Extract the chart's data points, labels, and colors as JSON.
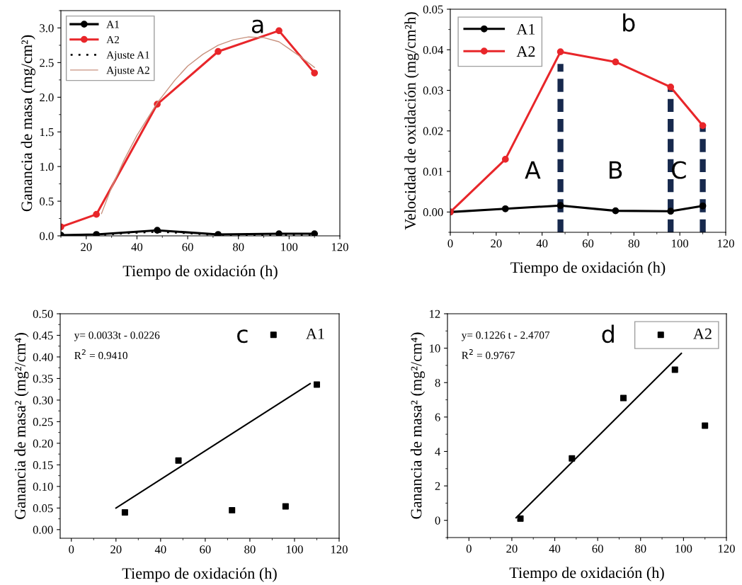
{
  "chart_data": [
    {
      "type": "line",
      "xlabel": "Tiempo de oxidación (h)",
      "ylabel": "Ganancia de masa (mg/cm²)",
      "xlim": [
        10,
        120
      ],
      "xticks": [
        20,
        40,
        60,
        80,
        100,
        120
      ],
      "ylim": [
        0,
        3.25
      ],
      "yticks": [
        {
          "value": 0,
          "label": "0.0"
        },
        0.5,
        {
          "value": 1,
          "label": "1.0"
        },
        1.5,
        {
          "value": 2,
          "label": "2.0"
        },
        2.5,
        {
          "value": 3,
          "label": "3.0"
        }
      ],
      "legend": "top left",
      "grid": false,
      "annotations": [
        "a"
      ],
      "series": [
        {
          "name": "A1",
          "color": "#000000",
          "marker": "circle",
          "line_style": "solid",
          "x": [
            10,
            24,
            48,
            72,
            96,
            110
          ],
          "values": [
            0.01,
            0.02,
            0.08,
            0.02,
            0.03,
            0.03
          ]
        },
        {
          "name": "A2",
          "color": "#e8262a",
          "marker": "circle",
          "line_style": "solid",
          "x": [
            10,
            24,
            48,
            72,
            96,
            110
          ],
          "values": [
            0.13,
            0.31,
            1.9,
            2.66,
            2.96,
            2.35
          ]
        },
        {
          "name": "Ajuste A1",
          "color": "#000000",
          "marker": "none",
          "line_style": "dotted",
          "x": [
            24,
            36,
            48,
            60,
            72,
            84,
            96,
            110
          ],
          "values": [
            0.01,
            0.04,
            0.06,
            0.04,
            0.01,
            0.01,
            0.01,
            0.01
          ]
        },
        {
          "name": "Ajuste A2",
          "color": "#c8927f",
          "marker": "none",
          "line_style": "solid",
          "x": [
            26,
            30,
            35,
            40,
            48,
            55,
            60,
            66,
            72,
            78,
            84,
            90,
            96,
            100,
            105,
            110
          ],
          "values": [
            0.32,
            0.7,
            1.1,
            1.45,
            1.92,
            2.25,
            2.45,
            2.62,
            2.75,
            2.83,
            2.87,
            2.86,
            2.8,
            2.7,
            2.57,
            2.43
          ]
        }
      ]
    },
    {
      "type": "line",
      "xlabel": "Tiempo de oxidación (h)",
      "ylabel": "Velocidad de oxidación (mg/cm²h)",
      "xlim": [
        0,
        120
      ],
      "xticks": [
        0,
        20,
        40,
        60,
        80,
        100,
        120
      ],
      "ylim": [
        -0.005,
        0.05
      ],
      "yticks": [
        {
          "value": 0,
          "label": "0.00"
        },
        {
          "value": 0.01,
          "label": "0.01"
        },
        {
          "value": 0.02,
          "label": "0.02"
        },
        {
          "value": 0.03,
          "label": "0.03"
        },
        {
          "value": 0.04,
          "label": "0.04"
        },
        {
          "value": 0.05,
          "label": "0.05"
        }
      ],
      "legend": "top left",
      "grid": false,
      "annotations": [
        "b",
        "A",
        "B",
        "C"
      ],
      "series": [
        {
          "name": "A1",
          "color": "#000000",
          "marker": "circle",
          "line_style": "solid",
          "x": [
            0,
            24,
            48,
            72,
            96,
            110
          ],
          "values": [
            0,
            0.0008,
            0.0016,
            0.0003,
            0.0002,
            0.0015
          ]
        },
        {
          "name": "A2",
          "color": "#e8262a",
          "marker": "circle",
          "line_style": "solid",
          "x": [
            0,
            24,
            48,
            72,
            96,
            110
          ],
          "values": [
            0,
            0.013,
            0.0395,
            0.037,
            0.0308,
            0.0213
          ]
        },
        {
          "color": "#17294d",
          "marker": "none",
          "line_style": "dashed",
          "x": [
            48,
            48
          ],
          "values": [
            -0.005,
            0.0365
          ]
        },
        {
          "color": "#17294d",
          "marker": "none",
          "line_style": "dashed",
          "x": [
            96,
            96
          ],
          "values": [
            -0.005,
            0.0303
          ]
        },
        {
          "color": "#17294d",
          "marker": "none",
          "line_style": "dashed",
          "x": [
            110,
            110
          ],
          "values": [
            -0.005,
            0.021
          ]
        }
      ]
    },
    {
      "type": "scatter",
      "xlabel": "Tiempo de oxidación (h)",
      "ylabel": "Ganancia de masa² (mg²/cm⁴)",
      "xlim": [
        -5,
        120
      ],
      "xticks": [
        0,
        20,
        40,
        60,
        80,
        100,
        120
      ],
      "ylim": [
        -0.02,
        0.5
      ],
      "yticks": [
        {
          "value": 0,
          "label": "0.00"
        },
        {
          "value": 0.05,
          "label": "0.05"
        },
        {
          "value": 0.1,
          "label": "0.10"
        },
        {
          "value": 0.15,
          "label": "0.15"
        },
        {
          "value": 0.2,
          "label": "0.20"
        },
        {
          "value": 0.25,
          "label": "0.25"
        },
        {
          "value": 0.3,
          "label": "0.30"
        },
        {
          "value": 0.35,
          "label": "0.35"
        },
        {
          "value": 0.4,
          "label": "0.40"
        },
        {
          "value": 0.45,
          "label": "0.45"
        },
        {
          "value": 0.5,
          "label": "0.50"
        }
      ],
      "legend": "top right",
      "grid": false,
      "annotations": [
        "c",
        "y= 0.0033t - 0.0226",
        "R$^{2}$ = 0.9410"
      ],
      "series": [
        {
          "name": "A1",
          "color": "#000000",
          "marker": "square",
          "x": [
            24,
            48,
            72,
            96,
            110
          ],
          "values": [
            0.04,
            0.16,
            0.045,
            0.054,
            0.336
          ]
        },
        {
          "type": "line",
          "color": "#000000",
          "marker": "none",
          "line_style": "solid",
          "x": [
            20,
            107
          ],
          "values": [
            0.05,
            0.338
          ]
        }
      ]
    },
    {
      "type": "scatter",
      "xlabel": "Tiempo de oxidación (h)",
      "ylabel": "Ganancia de masa² (mg²/cm⁴)",
      "xlim": [
        -10,
        120
      ],
      "xticks": [
        0,
        20,
        40,
        60,
        80,
        100,
        120
      ],
      "ylim": [
        -1,
        12
      ],
      "yticks": [
        0,
        2,
        4,
        6,
        8,
        10,
        12
      ],
      "legend": "top right",
      "grid": false,
      "annotations": [
        "d",
        "y= 0.1226 t - 2.4707",
        "R$^{2}$ = 0.9767"
      ],
      "series": [
        {
          "name": "A2",
          "color": "#000000",
          "marker": "square",
          "x": [
            24,
            48,
            72,
            96,
            110
          ],
          "values": [
            0.1,
            3.6,
            7.1,
            8.75,
            5.5
          ]
        },
        {
          "type": "line",
          "color": "#000000",
          "marker": "none",
          "line_style": "solid",
          "x": [
            22,
            99
          ],
          "values": [
            0.15,
            9.7
          ]
        }
      ]
    }
  ]
}
